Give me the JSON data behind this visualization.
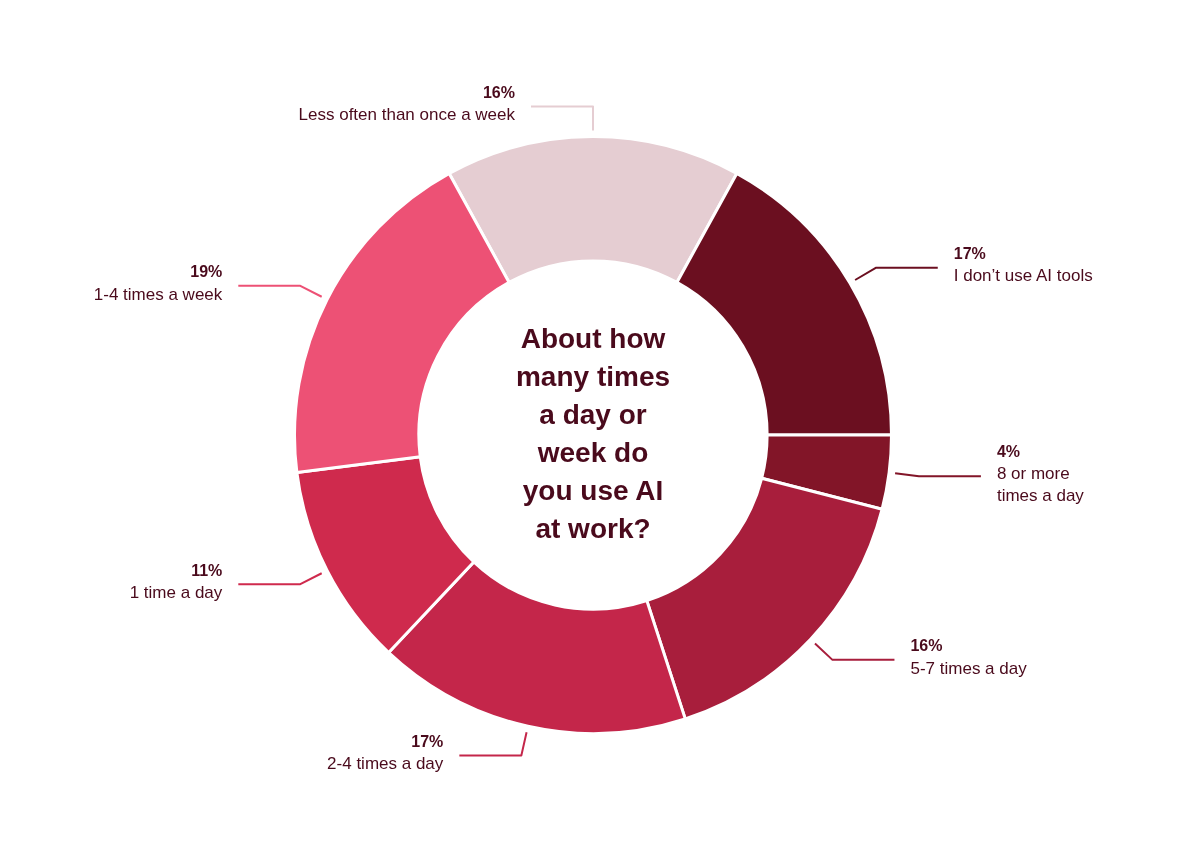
{
  "chart_data": {
    "type": "donut",
    "title": "About how many times a day or week do you use AI at work?",
    "categories": [
      "Less often than once a week",
      "I don’t use AI tools",
      "8 or more times a day",
      "5-7 times a day",
      "2-4 times a day",
      "1 time a day",
      "1-4 times a week"
    ],
    "values": [
      16,
      17,
      4,
      16,
      17,
      11,
      19
    ],
    "colors": [
      "#e5cdd2",
      "#6b0f20",
      "#821528",
      "#a81e3c",
      "#c4264a",
      "#cf2a4d",
      "#ed5175"
    ],
    "value_labels": [
      "16%",
      "17%",
      "4%",
      "16%",
      "17%",
      "11%",
      "19%"
    ],
    "legend": false
  }
}
